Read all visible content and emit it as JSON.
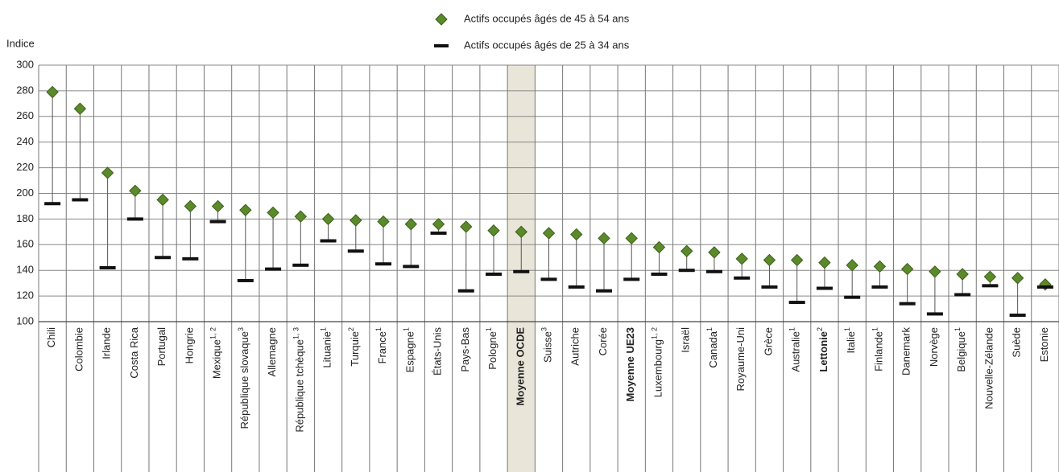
{
  "chart_data": {
    "type": "dot-range",
    "y_label": "Indice",
    "categories": [
      "Chili",
      "Colombie",
      "Irlande",
      "Costa Rica",
      "Portugal",
      "Hongrie",
      "Mexique",
      "République slovaque",
      "Allemagne",
      "République tchèque",
      "Lituanie",
      "Turquie",
      "France",
      "Espagne",
      "États-Unis",
      "Pays-Bas",
      "Pologne",
      "Moyenne OCDE",
      "Suisse",
      "Autriche",
      "Corée",
      "Moyenne UE23",
      "Luxembourg",
      "Israël",
      "Canada",
      "Royaume-Uni",
      "Grèce",
      "Australie",
      "Lettonie",
      "Italie",
      "Finlande",
      "Danemark",
      "Norvège",
      "Belgique",
      "Nouvelle-Zélande",
      "Suède",
      "Estonie"
    ],
    "category_notes": [
      null,
      null,
      null,
      null,
      null,
      null,
      "1, 2",
      "3",
      null,
      "1, 3",
      "1",
      "2",
      "1",
      "1",
      null,
      null,
      "1",
      null,
      "3",
      null,
      null,
      null,
      "1, 2",
      null,
      "1",
      null,
      null,
      "1",
      "2",
      "1",
      "1",
      null,
      null,
      "1",
      null,
      null,
      null
    ],
    "bold_indices": [
      17,
      21,
      28
    ],
    "highlight_index": 17,
    "series": [
      {
        "name": "Actifs occupés âgés de 45 à 54 ans",
        "color": "#5b8a2b",
        "marker": "diamond",
        "values": [
          279,
          266,
          216,
          202,
          195,
          190,
          190,
          187,
          185,
          182,
          180,
          179,
          178,
          176,
          176,
          174,
          171,
          170,
          169,
          168,
          165,
          165,
          158,
          155,
          154,
          149,
          148,
          148,
          146,
          144,
          143,
          141,
          139,
          137,
          135,
          134,
          129
        ]
      },
      {
        "name": "Actifs occupés âgés de 25 à 34 ans",
        "color": "#111111",
        "marker": "dash",
        "values": [
          192,
          195,
          142,
          180,
          150,
          149,
          178,
          132,
          141,
          144,
          163,
          155,
          145,
          143,
          169,
          124,
          137,
          139,
          133,
          127,
          124,
          133,
          137,
          140,
          139,
          134,
          127,
          115,
          126,
          119,
          127,
          114,
          106,
          121,
          128,
          105,
          127
        ]
      }
    ],
    "ylim": [
      100,
      300
    ],
    "yticks": [
      100,
      120,
      140,
      160,
      180,
      200,
      220,
      240,
      260,
      280,
      300
    ],
    "grid": true
  }
}
